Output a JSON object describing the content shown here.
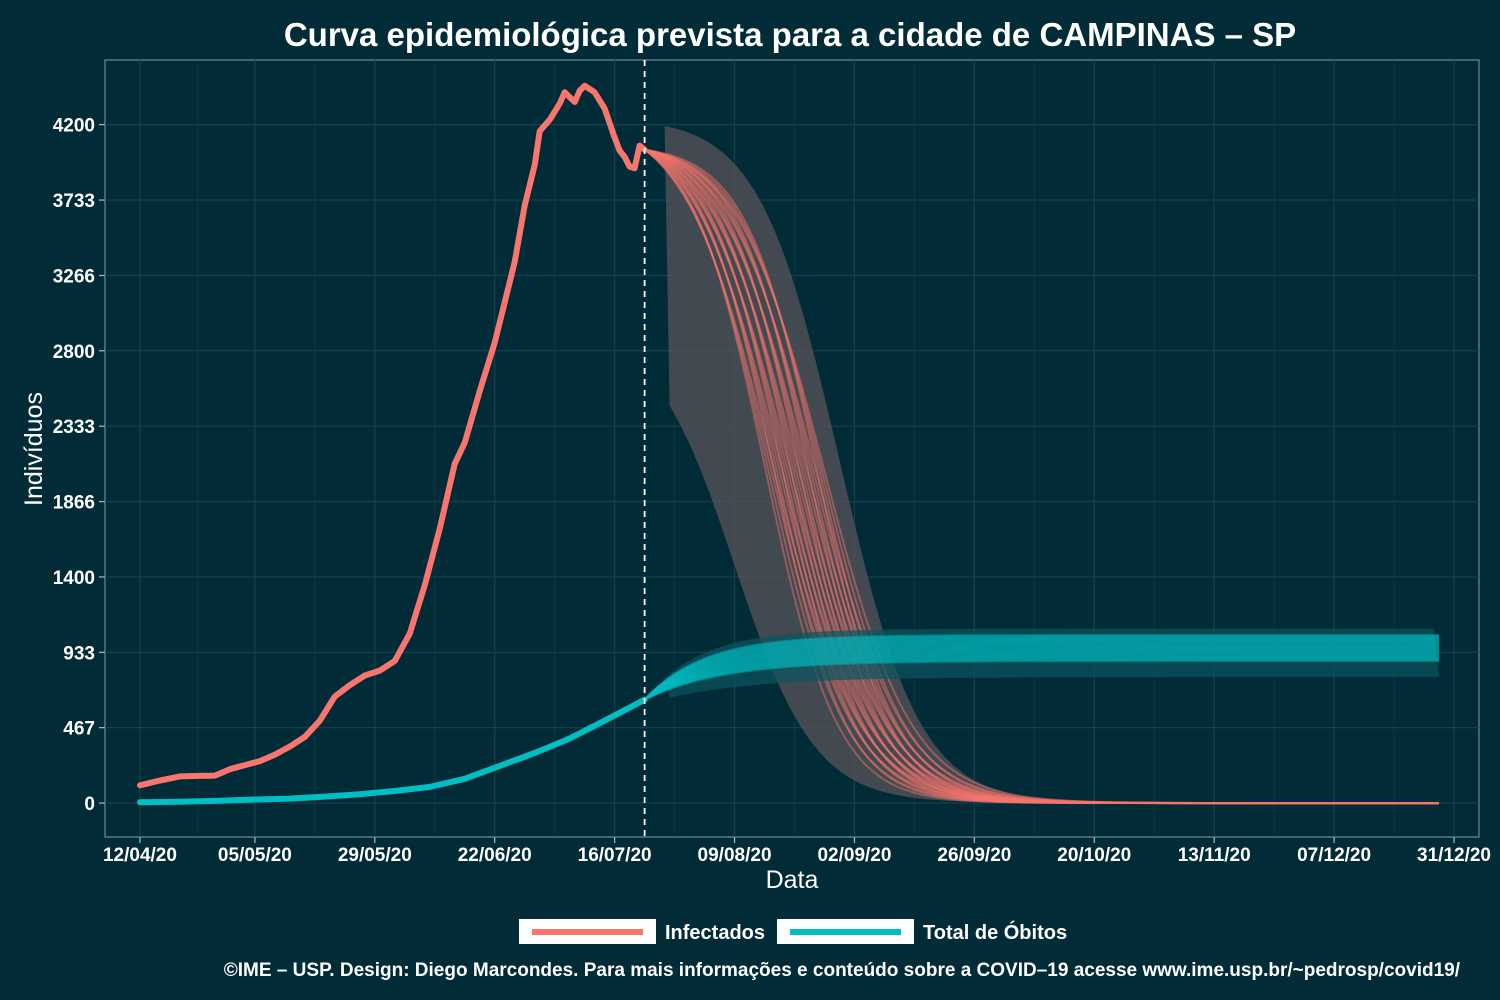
{
  "chart_data": {
    "type": "line",
    "title": "Curva epidemiológica prevista para a cidade de CAMPINAS – SP",
    "xlabel": "Data",
    "ylabel": "Indivíduos",
    "x_tick_labels": [
      "12/04/20",
      "05/05/20",
      "29/05/20",
      "22/06/20",
      "16/07/20",
      "09/08/20",
      "02/09/20",
      "26/09/20",
      "20/10/20",
      "13/11/20",
      "07/12/20",
      "31/12/20"
    ],
    "x_tick_dates": [
      "2020-04-12",
      "2020-05-05",
      "2020-05-29",
      "2020-06-22",
      "2020-07-16",
      "2020-08-09",
      "2020-09-02",
      "2020-09-26",
      "2020-10-20",
      "2020-11-13",
      "2020-12-07",
      "2020-12-31"
    ],
    "xlim": [
      "2020-04-05",
      "2021-01-05"
    ],
    "y_tick_labels": [
      "0",
      "467",
      "933",
      "1400",
      "1866",
      "2333",
      "2800",
      "3266",
      "3733",
      "4200"
    ],
    "y_ticks": [
      0,
      467,
      933,
      1400,
      1866,
      2333,
      2800,
      3266,
      3733,
      4200
    ],
    "ylim": [
      -210,
      4600
    ],
    "forecast_start": "2020-07-22",
    "grid": true,
    "legend_position": "bottom",
    "series": [
      {
        "name": "Infectados",
        "color": "#f8766d",
        "observed": [
          [
            "2020-04-12",
            110
          ],
          [
            "2020-04-16",
            140
          ],
          [
            "2020-04-20",
            165
          ],
          [
            "2020-04-24",
            168
          ],
          [
            "2020-04-27",
            170
          ],
          [
            "2020-04-30",
            210
          ],
          [
            "2020-05-03",
            235
          ],
          [
            "2020-05-06",
            260
          ],
          [
            "2020-05-09",
            300
          ],
          [
            "2020-05-12",
            350
          ],
          [
            "2020-05-15",
            410
          ],
          [
            "2020-05-18",
            510
          ],
          [
            "2020-05-21",
            660
          ],
          [
            "2020-05-24",
            730
          ],
          [
            "2020-05-27",
            790
          ],
          [
            "2020-05-30",
            820
          ],
          [
            "2020-06-02",
            880
          ],
          [
            "2020-06-05",
            1050
          ],
          [
            "2020-06-08",
            1350
          ],
          [
            "2020-06-11",
            1700
          ],
          [
            "2020-06-14",
            2100
          ],
          [
            "2020-06-16",
            2230
          ],
          [
            "2020-06-19",
            2550
          ],
          [
            "2020-06-22",
            2850
          ],
          [
            "2020-06-24",
            3100
          ],
          [
            "2020-06-26",
            3350
          ],
          [
            "2020-06-28",
            3700
          ],
          [
            "2020-06-30",
            3950
          ],
          [
            "2020-07-01",
            4160
          ],
          [
            "2020-07-03",
            4230
          ],
          [
            "2020-07-05",
            4330
          ],
          [
            "2020-07-06",
            4400
          ],
          [
            "2020-07-08",
            4340
          ],
          [
            "2020-07-09",
            4410
          ],
          [
            "2020-07-10",
            4440
          ],
          [
            "2020-07-12",
            4400
          ],
          [
            "2020-07-14",
            4300
          ],
          [
            "2020-07-16",
            4120
          ],
          [
            "2020-07-17",
            4040
          ],
          [
            "2020-07-18",
            4000
          ],
          [
            "2020-07-19",
            3940
          ],
          [
            "2020-07-20",
            3930
          ],
          [
            "2020-07-21",
            4070
          ],
          [
            "2020-07-22",
            4045
          ]
        ],
        "forecast": {
          "peak_value": 4045,
          "mid_date_range": [
            "2020-08-15",
            "2020-08-27"
          ],
          "spread_days": 8,
          "members": 28,
          "end_value": 5
        }
      },
      {
        "name": "Total de Óbitos",
        "color": "#00bfc4",
        "observed": [
          [
            "2020-04-12",
            5
          ],
          [
            "2020-04-20",
            8
          ],
          [
            "2020-04-28",
            15
          ],
          [
            "2020-05-05",
            22
          ],
          [
            "2020-05-12",
            28
          ],
          [
            "2020-05-19",
            40
          ],
          [
            "2020-05-26",
            55
          ],
          [
            "2020-06-02",
            75
          ],
          [
            "2020-06-09",
            100
          ],
          [
            "2020-06-16",
            150
          ],
          [
            "2020-06-23",
            230
          ],
          [
            "2020-06-30",
            310
          ],
          [
            "2020-07-07",
            400
          ],
          [
            "2020-07-14",
            510
          ],
          [
            "2020-07-22",
            640
          ]
        ],
        "forecast": {
          "plateau_range": [
            880,
            1040
          ],
          "members": 28,
          "growth_rate": 0.065
        }
      }
    ],
    "caption": "©IME – USP. Design: Diego Marcondes. Para mais informações e conteúdo sobre a COVID–19 acesse www.ime.usp.br/~pedrosp/covid19/"
  }
}
